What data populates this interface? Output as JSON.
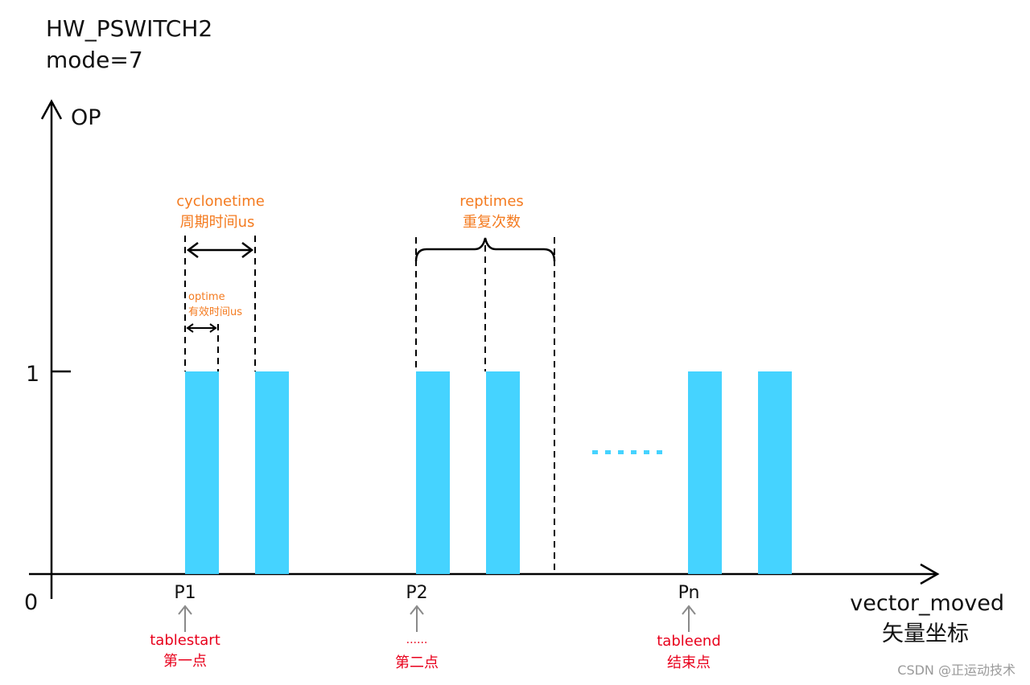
{
  "title": {
    "line1": "HW_PSWITCH2",
    "line2": "mode=7"
  },
  "axes": {
    "y_label": "OP",
    "y_tick": "1",
    "origin": "0",
    "x_label_en": "vector_moved",
    "x_label_cn": "矢量坐标"
  },
  "annotations": {
    "cyclonetime_en": "cyclonetime",
    "cyclonetime_cn": "周期时间us",
    "optime_en": "optime",
    "optime_cn": "有效时间us",
    "reptimes_en": "reptimes",
    "reptimes_cn": "重复次数",
    "ellipsis": "......"
  },
  "points": [
    {
      "label": "P1",
      "tag": "tablestart",
      "tag_cn": "第一点"
    },
    {
      "label": "P2",
      "tag": "......",
      "tag_cn": "第二点"
    },
    {
      "label": "Pn",
      "tag": "tableend",
      "tag_cn": "结束点"
    }
  ],
  "watermark": "CSDN @正运动技术",
  "colors": {
    "pulse": "#45D3FF",
    "annotation": "#F47B20",
    "point_tag": "#E8001C",
    "axis": "#000000",
    "arrow_gray": "#8A8A8A",
    "dots": "#45D3FF"
  }
}
